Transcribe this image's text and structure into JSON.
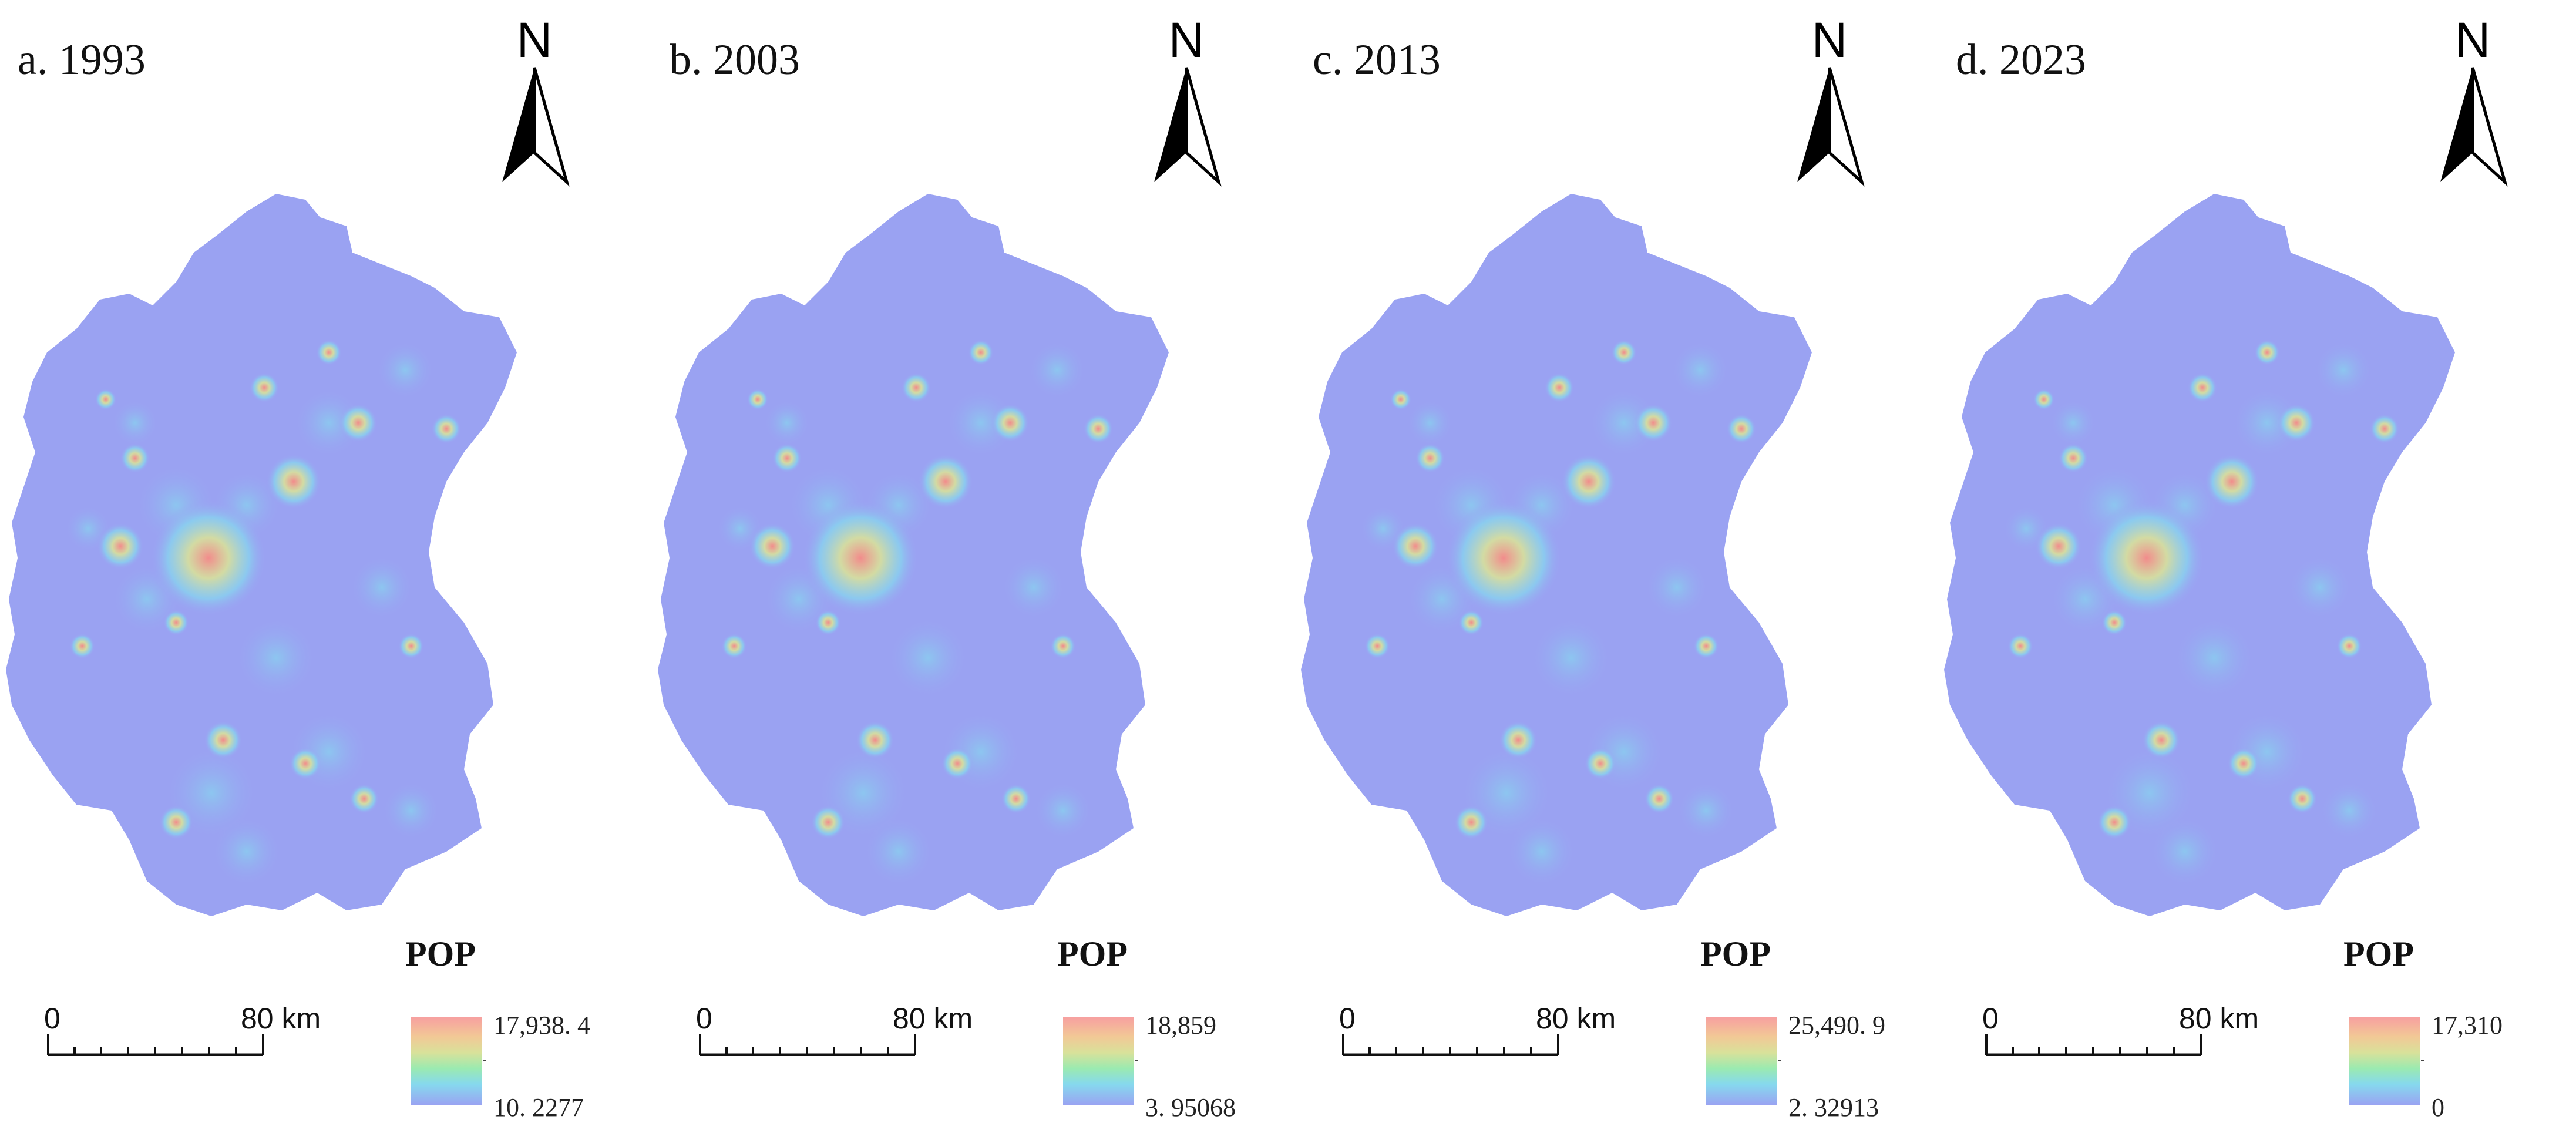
{
  "panels": [
    {
      "title": "a. 1993",
      "north": "N",
      "legend_title": "POP",
      "legend_max": "17,938. 4",
      "legend_min": "10. 2277",
      "scale_start": "0",
      "scale_end": "80 km"
    },
    {
      "title": "b. 2003",
      "north": "N",
      "legend_title": "POP",
      "legend_max": "18,859",
      "legend_min": "3. 95068",
      "scale_start": "0",
      "scale_end": "80 km"
    },
    {
      "title": "c. 2013",
      "north": "N",
      "legend_title": "POP",
      "legend_max": "25,490. 9",
      "legend_min": "2. 32913",
      "scale_start": "0",
      "scale_end": "80 km"
    },
    {
      "title": "d. 2023",
      "north": "N",
      "legend_title": "POP",
      "legend_max": "17,310",
      "legend_min": "0",
      "scale_start": "0",
      "scale_end": "80 km"
    }
  ],
  "colors": {
    "background_region": "#9aa2f2",
    "high_density": "#f28c8c",
    "mid_density": "#d9e19a",
    "low_density": "#86d9ee"
  }
}
